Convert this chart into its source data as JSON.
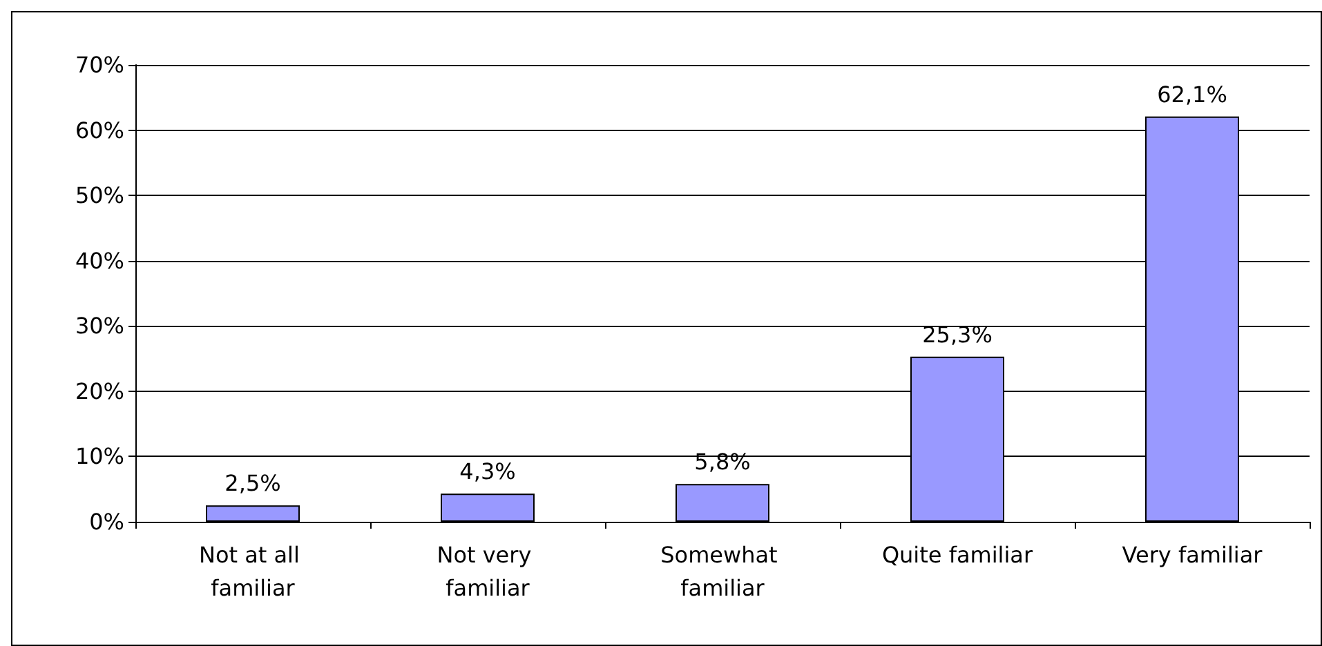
{
  "chart_data": {
    "type": "bar",
    "categories": [
      "Not at all familiar",
      "Not very familiar",
      "Somewhat familiar",
      "Quite familiar",
      "Very familiar"
    ],
    "values": [
      2.5,
      4.3,
      5.8,
      25.3,
      62.1
    ],
    "value_labels": [
      "2,5%",
      "4,3%",
      "5,8%",
      "25,3%",
      "62,1%"
    ],
    "color": "#9999ff",
    "ylim": [
      0,
      70
    ],
    "yticks": [
      {
        "value": 0,
        "label": "0%"
      },
      {
        "value": 10,
        "label": "10%"
      },
      {
        "value": 20,
        "label": "20%"
      },
      {
        "value": 30,
        "label": "30%"
      },
      {
        "value": 40,
        "label": "40%"
      },
      {
        "value": 50,
        "label": "50%"
      },
      {
        "value": 60,
        "label": "60%"
      },
      {
        "value": 70,
        "label": "70%"
      }
    ],
    "grid": "y"
  }
}
